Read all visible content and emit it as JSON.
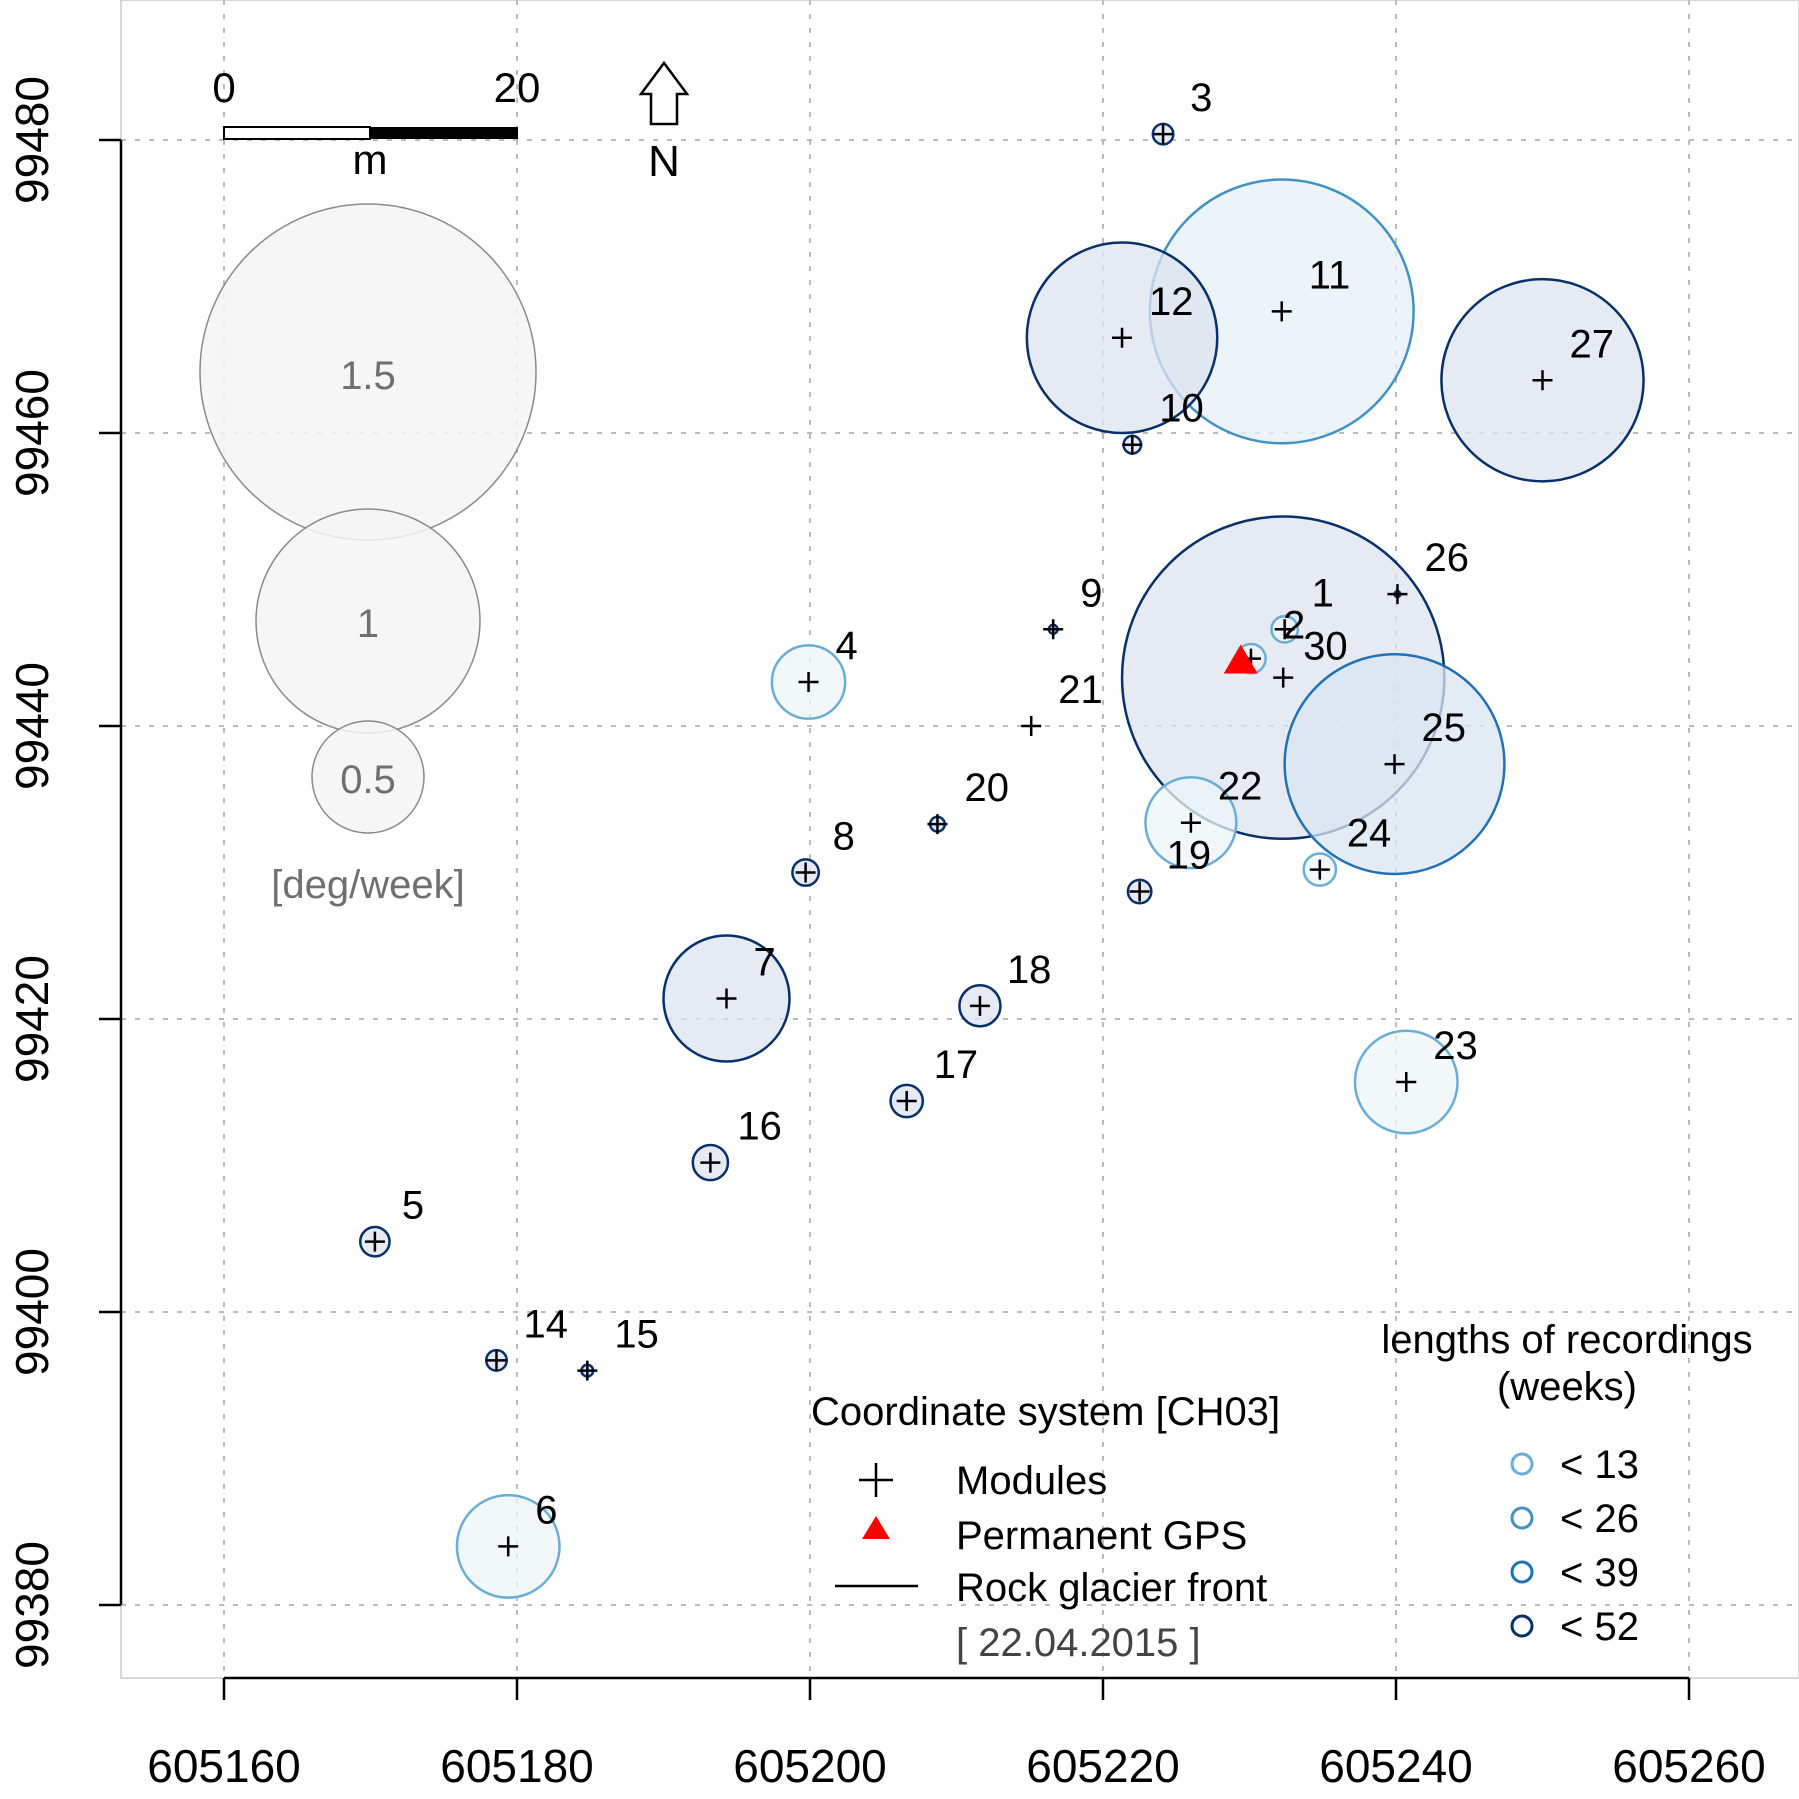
{
  "chart_data": {
    "type": "scatter",
    "title": "",
    "xlabel": "",
    "ylabel": "",
    "xlim": [
      605153,
      605266
    ],
    "ylim": [
      99375,
      99485
    ],
    "grid": true,
    "x_ticks": [
      605160,
      605180,
      605200,
      605220,
      605240,
      605260
    ],
    "y_ticks": [
      99380,
      99400,
      99420,
      99440,
      99460,
      99480
    ],
    "x_tick_labels": [
      "605160",
      "605180",
      "605200",
      "605220",
      "605240",
      "605260"
    ],
    "y_tick_labels": [
      "99380",
      "99400",
      "99420",
      "99440",
      "99460",
      "99480"
    ],
    "modules": [
      {
        "id": "1",
        "x": 605232.4,
        "y": 99446.6,
        "radius_m": 0.9,
        "class": "< 13"
      },
      {
        "id": "2",
        "x": 605230.1,
        "y": 99444.6,
        "radius_m": 1.0,
        "class": "< 13"
      },
      {
        "id": "3",
        "x": 605224.1,
        "y": 99480.4,
        "radius_m": 0.7,
        "class": "< 52"
      },
      {
        "id": "4",
        "x": 605199.9,
        "y": 99443.0,
        "radius_m": 2.5,
        "class": "< 13"
      },
      {
        "id": "5",
        "x": 605170.3,
        "y": 99404.8,
        "radius_m": 1.0,
        "class": "< 52"
      },
      {
        "id": "6",
        "x": 605179.4,
        "y": 99384.0,
        "radius_m": 3.5,
        "class": "< 13"
      },
      {
        "id": "7",
        "x": 605194.3,
        "y": 99421.4,
        "radius_m": 4.3,
        "class": "< 52"
      },
      {
        "id": "8",
        "x": 605199.7,
        "y": 99430.0,
        "radius_m": 0.9,
        "class": "< 52"
      },
      {
        "id": "9",
        "x": 605216.6,
        "y": 99446.6,
        "radius_m": 0.3,
        "class": "< 52"
      },
      {
        "id": "10",
        "x": 605222.0,
        "y": 99459.2,
        "radius_m": 0.6,
        "class": "< 52"
      },
      {
        "id": "11",
        "x": 605232.2,
        "y": 99468.3,
        "radius_m": 9.0,
        "class": "< 26"
      },
      {
        "id": "12",
        "x": 605221.3,
        "y": 99466.5,
        "radius_m": 6.5,
        "class": "< 52"
      },
      {
        "id": "14",
        "x": 605178.6,
        "y": 99396.7,
        "radius_m": 0.7,
        "class": "< 52"
      },
      {
        "id": "15",
        "x": 605184.8,
        "y": 99396.0,
        "radius_m": 0.4,
        "class": "< 52"
      },
      {
        "id": "16",
        "x": 605193.2,
        "y": 99410.2,
        "radius_m": 1.2,
        "class": "< 52"
      },
      {
        "id": "17",
        "x": 605206.6,
        "y": 99414.4,
        "radius_m": 1.1,
        "class": "< 52"
      },
      {
        "id": "18",
        "x": 605211.6,
        "y": 99420.9,
        "radius_m": 1.4,
        "class": "< 52"
      },
      {
        "id": "19",
        "x": 605222.5,
        "y": 99428.7,
        "radius_m": 0.8,
        "class": "< 52"
      },
      {
        "id": "20",
        "x": 605208.7,
        "y": 99433.3,
        "radius_m": 0.5,
        "class": "< 52"
      },
      {
        "id": "21",
        "x": 605215.1,
        "y": 99440.0,
        "radius_m": 0,
        "class": ""
      },
      {
        "id": "22",
        "x": 605226.0,
        "y": 99433.4,
        "radius_m": 3.1,
        "class": "< 13"
      },
      {
        "id": "23",
        "x": 605240.7,
        "y": 99415.7,
        "radius_m": 3.5,
        "class": "< 13"
      },
      {
        "id": "24",
        "x": 605234.8,
        "y": 99430.2,
        "radius_m": 1.1,
        "class": "< 13"
      },
      {
        "id": "25",
        "x": 605239.9,
        "y": 99437.4,
        "radius_m": 7.5,
        "class": "< 39"
      },
      {
        "id": "26",
        "x": 605240.1,
        "y": 99449.0,
        "radius_m": 0.2,
        "class": "< 52"
      },
      {
        "id": "27",
        "x": 605250.0,
        "y": 99463.6,
        "radius_m": 6.9,
        "class": "< 52"
      },
      {
        "id": "30",
        "x": 605232.3,
        "y": 99443.3,
        "radius_m": 11.0,
        "class": "< 52"
      }
    ],
    "gps": {
      "x": 605229.4,
      "y": 99444.4
    },
    "scale_bar": {
      "labels": [
        "0",
        "20"
      ],
      "unit": "m"
    },
    "north_arrow": {
      "label": "N"
    },
    "size_legend": {
      "values": [
        1.5,
        1,
        0.5
      ],
      "labels": [
        "1.5",
        "1",
        "0.5"
      ],
      "unit": "[deg/week]"
    },
    "color_legend": {
      "title_line1": "lengths of recordings",
      "title_line2": "(weeks)",
      "entries": [
        {
          "label": "< 13",
          "color": "#6aaed6"
        },
        {
          "label": "< 26",
          "color": "#4292c6"
        },
        {
          "label": "< 39",
          "color": "#2171b5"
        },
        {
          "label": "< 52",
          "color": "#08306b"
        }
      ]
    },
    "symbol_legend": {
      "title": "Coordinate system [CH03]",
      "modules": "Modules",
      "gps": "Permanent GPS",
      "front": "Rock glacier front",
      "date": "[ 22.04.2015 ]"
    },
    "colors": {
      "< 13": {
        "stroke": "#6aaed6",
        "fill": "#eef6f8"
      },
      "< 26": {
        "stroke": "#4292c6",
        "fill": "#e6f0f8"
      },
      "< 39": {
        "stroke": "#2171b5",
        "fill": "#d9e6f2"
      },
      "< 52": {
        "stroke": "#08306b",
        "fill": "#dde3ee"
      },
      "gps": "#ff0000",
      "grid": "#bbbbbb",
      "legend_gray": "#6f6f6f"
    }
  }
}
